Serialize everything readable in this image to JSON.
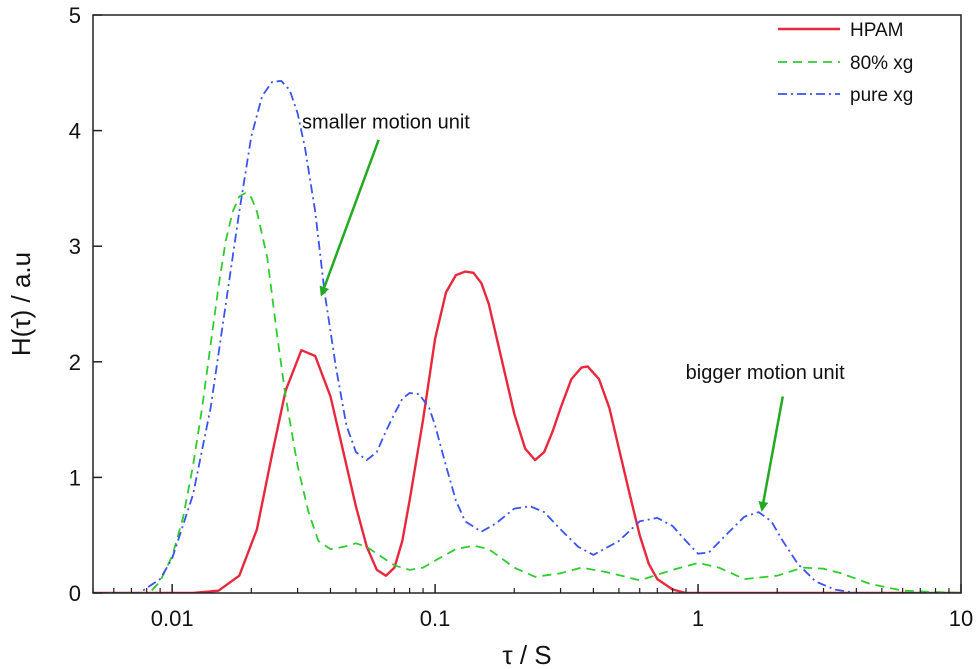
{
  "chart_data": {
    "type": "line",
    "title": "",
    "xlabel": "τ / S",
    "ylabel": "H(τ) / a.u",
    "x_scale": "log",
    "xlim": [
      0.005,
      10
    ],
    "ylim": [
      0,
      5
    ],
    "x_ticks": [
      {
        "value": 0.01,
        "label": "0.01"
      },
      {
        "value": 0.1,
        "label": "0.1"
      },
      {
        "value": 1,
        "label": "1"
      },
      {
        "value": 10,
        "label": "10"
      }
    ],
    "y_ticks": [
      {
        "value": 0,
        "label": "0"
      },
      {
        "value": 1,
        "label": "1"
      },
      {
        "value": 2,
        "label": "2"
      },
      {
        "value": 3,
        "label": "3"
      },
      {
        "value": 4,
        "label": "4"
      },
      {
        "value": 5,
        "label": "5"
      }
    ],
    "grid": false,
    "legend_position": "top-right",
    "series": [
      {
        "name": "HPAM",
        "color": "#e8283c",
        "line_style": "solid",
        "x": [
          0.005,
          0.012,
          0.015,
          0.018,
          0.021,
          0.024,
          0.027,
          0.031,
          0.035,
          0.04,
          0.045,
          0.05,
          0.055,
          0.06,
          0.065,
          0.07,
          0.075,
          0.08,
          0.09,
          0.1,
          0.11,
          0.12,
          0.13,
          0.14,
          0.15,
          0.16,
          0.18,
          0.2,
          0.22,
          0.24,
          0.26,
          0.28,
          0.3,
          0.33,
          0.36,
          0.38,
          0.42,
          0.46,
          0.5,
          0.55,
          0.6,
          0.65,
          0.7,
          0.8,
          0.9,
          1.0,
          1.2,
          10
        ],
        "y": [
          0.0,
          0.0,
          0.02,
          0.15,
          0.55,
          1.2,
          1.75,
          2.1,
          2.05,
          1.7,
          1.2,
          0.75,
          0.4,
          0.2,
          0.15,
          0.22,
          0.45,
          0.8,
          1.5,
          2.2,
          2.6,
          2.75,
          2.78,
          2.77,
          2.68,
          2.5,
          2.0,
          1.55,
          1.25,
          1.15,
          1.22,
          1.4,
          1.6,
          1.85,
          1.95,
          1.96,
          1.85,
          1.6,
          1.25,
          0.85,
          0.5,
          0.25,
          0.12,
          0.03,
          0.0,
          0.0,
          0.0,
          0.0
        ]
      },
      {
        "name": "80% xg",
        "color": "#2ecc2e",
        "line_style": "dashed",
        "x": [
          0.005,
          0.0082,
          0.009,
          0.01,
          0.011,
          0.012,
          0.013,
          0.014,
          0.015,
          0.016,
          0.017,
          0.018,
          0.019,
          0.02,
          0.021,
          0.023,
          0.025,
          0.027,
          0.03,
          0.033,
          0.036,
          0.04,
          0.045,
          0.05,
          0.055,
          0.06,
          0.07,
          0.08,
          0.09,
          0.1,
          0.12,
          0.14,
          0.16,
          0.2,
          0.24,
          0.3,
          0.36,
          0.45,
          0.6,
          0.8,
          1.0,
          1.2,
          1.5,
          2.0,
          2.5,
          3.0,
          3.5,
          4.5,
          6.0,
          10
        ],
        "y": [
          0.0,
          0.0,
          0.1,
          0.32,
          0.65,
          1.1,
          1.6,
          2.15,
          2.65,
          3.05,
          3.3,
          3.43,
          3.46,
          3.42,
          3.3,
          2.9,
          2.25,
          1.7,
          1.1,
          0.7,
          0.45,
          0.38,
          0.4,
          0.43,
          0.4,
          0.34,
          0.24,
          0.2,
          0.22,
          0.28,
          0.38,
          0.41,
          0.38,
          0.22,
          0.14,
          0.17,
          0.22,
          0.18,
          0.11,
          0.2,
          0.26,
          0.22,
          0.12,
          0.15,
          0.22,
          0.21,
          0.17,
          0.08,
          0.02,
          0.0
        ]
      },
      {
        "name": "pure xg",
        "color": "#3a52f0",
        "line_style": "dashdot",
        "x": [
          0.005,
          0.0075,
          0.009,
          0.01,
          0.012,
          0.014,
          0.016,
          0.018,
          0.02,
          0.022,
          0.024,
          0.026,
          0.028,
          0.03,
          0.032,
          0.035,
          0.038,
          0.042,
          0.046,
          0.05,
          0.055,
          0.06,
          0.065,
          0.07,
          0.075,
          0.08,
          0.087,
          0.095,
          0.1,
          0.11,
          0.12,
          0.13,
          0.15,
          0.17,
          0.2,
          0.23,
          0.26,
          0.3,
          0.35,
          0.4,
          0.5,
          0.6,
          0.7,
          0.8,
          0.9,
          1.0,
          1.1,
          1.3,
          1.5,
          1.7,
          1.9,
          2.1,
          2.4,
          2.8,
          3.3,
          4.0,
          10
        ],
        "y": [
          0.0,
          0.0,
          0.12,
          0.3,
          0.85,
          1.6,
          2.5,
          3.3,
          3.95,
          4.3,
          4.42,
          4.43,
          4.35,
          4.15,
          3.85,
          3.3,
          2.6,
          1.95,
          1.45,
          1.22,
          1.15,
          1.22,
          1.4,
          1.55,
          1.68,
          1.73,
          1.72,
          1.6,
          1.45,
          1.1,
          0.8,
          0.62,
          0.53,
          0.6,
          0.73,
          0.75,
          0.7,
          0.55,
          0.4,
          0.33,
          0.45,
          0.62,
          0.65,
          0.58,
          0.45,
          0.34,
          0.35,
          0.52,
          0.66,
          0.7,
          0.62,
          0.45,
          0.25,
          0.1,
          0.03,
          0.0,
          0.0
        ]
      }
    ],
    "annotations": [
      {
        "text": "smaller motion unit",
        "x": 0.065,
        "y": 4.02
      },
      {
        "text": "bigger motion unit",
        "x": 1.8,
        "y": 1.85
      }
    ],
    "arrows": [
      {
        "color": "#22aa22",
        "from": {
          "x": 0.061,
          "y": 3.92
        },
        "to": {
          "x": 0.037,
          "y": 2.58
        }
      },
      {
        "color": "#22aa22",
        "from": {
          "x": 2.1,
          "y": 1.7
        },
        "to": {
          "x": 1.75,
          "y": 0.72
        }
      }
    ]
  }
}
